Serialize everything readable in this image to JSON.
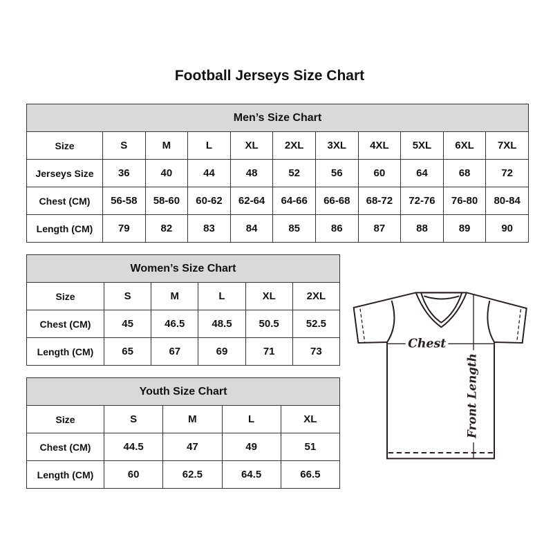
{
  "title": "Football Jerseys Size Chart",
  "tables": [
    {
      "id": "men",
      "title": "Men’s Size Chart",
      "rows": [
        [
          "Size",
          "S",
          "M",
          "L",
          "XL",
          "2XL",
          "3XL",
          "4XL",
          "5XL",
          "6XL",
          "7XL"
        ],
        [
          "Jerseys Size",
          "36",
          "40",
          "44",
          "48",
          "52",
          "56",
          "60",
          "64",
          "68",
          "72"
        ],
        [
          "Chest (CM)",
          "56-58",
          "58-60",
          "60-62",
          "62-64",
          "64-66",
          "66-68",
          "68-72",
          "72-76",
          "76-80",
          "80-84"
        ],
        [
          "Length (CM)",
          "79",
          "82",
          "83",
          "84",
          "85",
          "86",
          "87",
          "88",
          "89",
          "90"
        ]
      ]
    },
    {
      "id": "women",
      "title": "Women’s Size Chart",
      "rows": [
        [
          "Size",
          "S",
          "M",
          "L",
          "XL",
          "2XL"
        ],
        [
          "Chest (CM)",
          "45",
          "46.5",
          "48.5",
          "50.5",
          "52.5"
        ],
        [
          "Length (CM)",
          "65",
          "67",
          "69",
          "71",
          "73"
        ]
      ]
    },
    {
      "id": "youth",
      "title": "Youth Size Chart",
      "rows": [
        [
          "Size",
          "S",
          "M",
          "L",
          "XL"
        ],
        [
          "Chest (CM)",
          "44.5",
          "47",
          "49",
          "51"
        ],
        [
          "Length (CM)",
          "60",
          "62.5",
          "64.5",
          "66.5"
        ]
      ]
    }
  ],
  "diagram": {
    "chest_label": "Chest",
    "length_label": "Front Length"
  }
}
